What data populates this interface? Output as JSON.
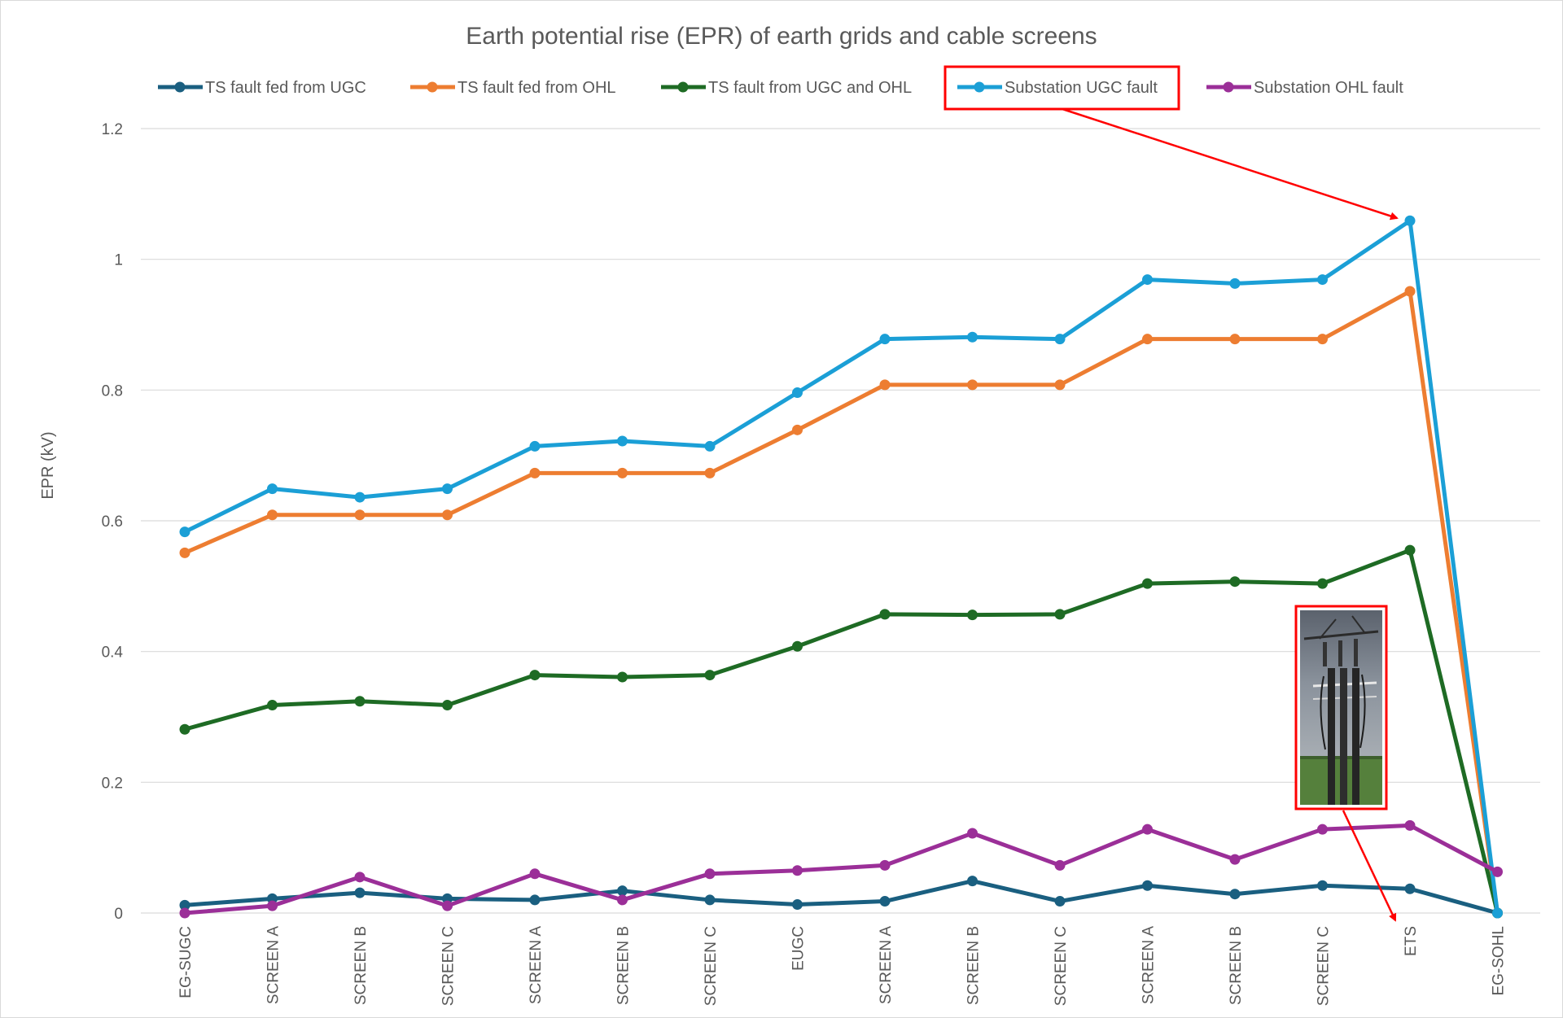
{
  "chart_data": {
    "type": "line",
    "title": "Earth potential rise (EPR) of earth grids and cable screens",
    "xlabel": "",
    "ylabel": "EPR (kV)",
    "ylim": [
      0,
      1.2
    ],
    "yticks": [
      "0",
      "0.2",
      "0.4",
      "0.6",
      "0.8",
      "1",
      "1.2"
    ],
    "ytick_values": [
      0,
      0.2,
      0.4,
      0.6,
      0.8,
      1.0,
      1.2
    ],
    "grid": true,
    "legend_position": "top",
    "categories": [
      "EG-SUGC",
      "SCREEN A",
      "SCREEN B",
      "SCREEN C",
      "SCREEN A",
      "SCREEN B",
      "SCREEN C",
      "EUGC",
      "SCREEN A",
      "SCREEN B",
      "SCREEN C",
      "SCREEN A",
      "SCREEN B",
      "SCREEN C",
      "ETS",
      "EG-SOHL"
    ],
    "series": [
      {
        "name": "TS fault fed from UGC",
        "color": "#1a5f80",
        "values": [
          0.012,
          0.022,
          0.031,
          0.022,
          0.02,
          0.034,
          0.02,
          0.013,
          0.018,
          0.049,
          0.018,
          0.042,
          0.029,
          0.042,
          0.037,
          0.0
        ]
      },
      {
        "name": "TS fault fed from OHL",
        "color": "#ed7d31",
        "values": [
          0.551,
          0.609,
          0.609,
          0.609,
          0.673,
          0.673,
          0.673,
          0.739,
          0.808,
          0.808,
          0.808,
          0.878,
          0.878,
          0.878,
          0.951,
          0.0
        ]
      },
      {
        "name": "TS fault from UGC and OHL",
        "color": "#1e6b24",
        "values": [
          0.281,
          0.318,
          0.324,
          0.318,
          0.364,
          0.361,
          0.364,
          0.408,
          0.457,
          0.456,
          0.457,
          0.504,
          0.507,
          0.504,
          0.555,
          0.0
        ]
      },
      {
        "name": "Substation UGC fault",
        "color": "#1b9fd6",
        "values": [
          0.583,
          0.649,
          0.636,
          0.649,
          0.714,
          0.722,
          0.714,
          0.796,
          0.878,
          0.881,
          0.878,
          0.969,
          0.963,
          0.969,
          1.059,
          0.0
        ]
      },
      {
        "name": "Substation OHL fault",
        "color": "#9b2f98",
        "values": [
          0.0,
          0.011,
          0.055,
          0.011,
          0.06,
          0.02,
          0.06,
          0.065,
          0.073,
          0.122,
          0.073,
          0.128,
          0.082,
          0.128,
          0.134,
          0.063
        ]
      }
    ],
    "annotations": {
      "highlight_color": "#ff0000",
      "legend_callout": "Substation UGC fault",
      "photo_callout": "ETS"
    }
  },
  "annotation_colors": {
    "photo_sky": "#6f7782",
    "photo_grass": "#4f7a3a",
    "photo_pole": "#2b2b2b"
  }
}
